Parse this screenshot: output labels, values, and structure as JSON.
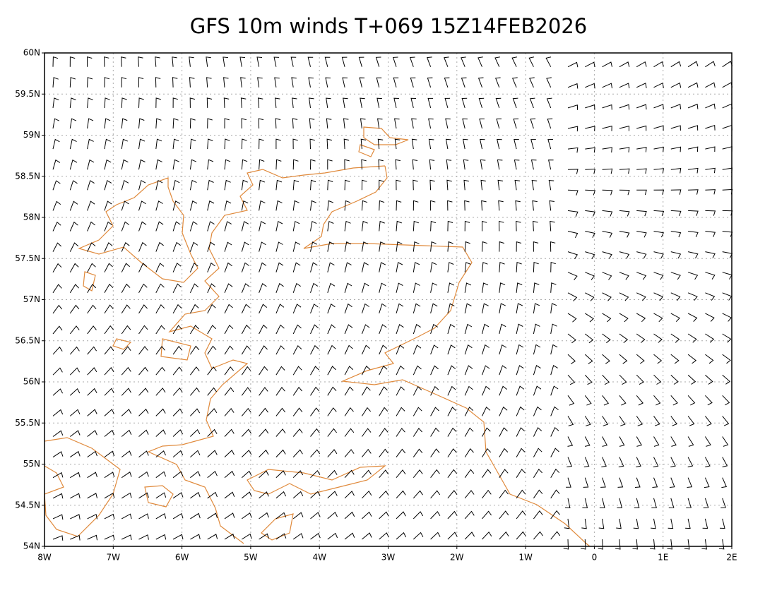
{
  "chart_data": {
    "type": "wind-barb",
    "title": "GFS 10m winds T+069 15Z14FEB2026",
    "xlim": [
      -8,
      2
    ],
    "ylim": [
      54,
      60
    ],
    "xticks": [
      {
        "value": -8,
        "label": "8W"
      },
      {
        "value": -7,
        "label": "7W"
      },
      {
        "value": -6,
        "label": "6W"
      },
      {
        "value": -5,
        "label": "5W"
      },
      {
        "value": -4,
        "label": "4W"
      },
      {
        "value": -3,
        "label": "3W"
      },
      {
        "value": -2,
        "label": "2W"
      },
      {
        "value": -1,
        "label": "1W"
      },
      0,
      {
        "value": 1,
        "label": "1E"
      },
      {
        "value": 2,
        "label": "2E"
      }
    ],
    "yticks": [
      {
        "value": 54,
        "label": "54N"
      },
      {
        "value": 54.5,
        "label": "54.5N"
      },
      {
        "value": 55,
        "label": "55N"
      },
      {
        "value": 55.5,
        "label": "55.5N"
      },
      {
        "value": 56,
        "label": "56N"
      },
      {
        "value": 56.5,
        "label": "56.5N"
      },
      {
        "value": 57,
        "label": "57N"
      },
      {
        "value": 57.5,
        "label": "57.5N"
      },
      {
        "value": 58,
        "label": "58N"
      },
      {
        "value": 58.5,
        "label": "58.5N"
      },
      {
        "value": 59,
        "label": "59N"
      },
      {
        "value": 59.5,
        "label": "59.5N"
      },
      {
        "value": 60,
        "label": "60N"
      }
    ],
    "grid": true
  }
}
